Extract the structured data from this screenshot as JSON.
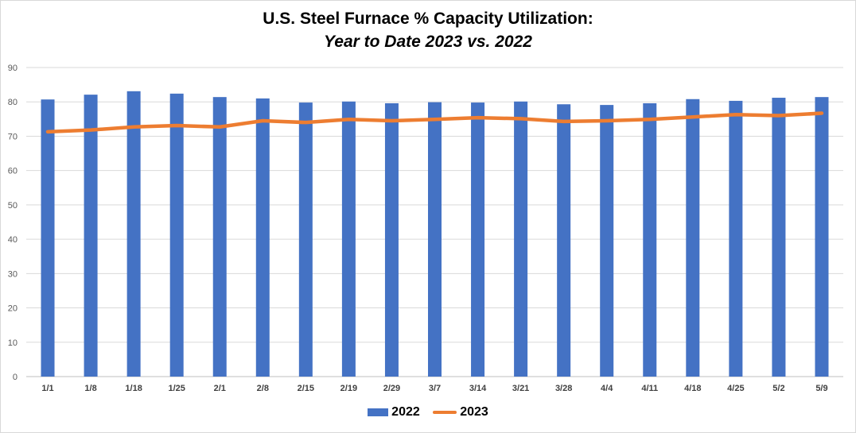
{
  "chart_data": {
    "type": "bar",
    "title": "U.S. Steel Furnace % Capacity Utilization:",
    "subtitle": "Year to Date 2023 vs. 2022",
    "categories": [
      "1/1",
      "1/8",
      "1/18",
      "1/25",
      "2/1",
      "2/8",
      "2/15",
      "2/19",
      "2/29",
      "3/7",
      "3/14",
      "3/21",
      "3/28",
      "4/4",
      "4/11",
      "4/18",
      "4/25",
      "5/2",
      "5/9"
    ],
    "series": [
      {
        "name": "2022",
        "type": "bar",
        "color": "#4472c4",
        "values": [
          80.7,
          82.1,
          83.1,
          82.4,
          81.4,
          81.0,
          79.8,
          80.1,
          79.6,
          79.9,
          79.8,
          80.1,
          79.3,
          79.1,
          79.6,
          80.8,
          80.3,
          81.2,
          81.4
        ]
      },
      {
        "name": "2023",
        "type": "line",
        "color": "#ed7d31",
        "values": [
          71.3,
          71.8,
          72.7,
          73.1,
          72.7,
          74.5,
          74.0,
          74.9,
          74.5,
          74.9,
          75.4,
          75.1,
          74.3,
          74.5,
          74.9,
          75.6,
          76.3,
          76.0,
          76.7
        ]
      }
    ],
    "xlabel": "",
    "ylabel": "",
    "ylim": [
      0,
      90
    ],
    "yticks": [
      0,
      10,
      20,
      30,
      40,
      50,
      60,
      70,
      80,
      90
    ],
    "grid": true,
    "legend": "bottom-center"
  }
}
